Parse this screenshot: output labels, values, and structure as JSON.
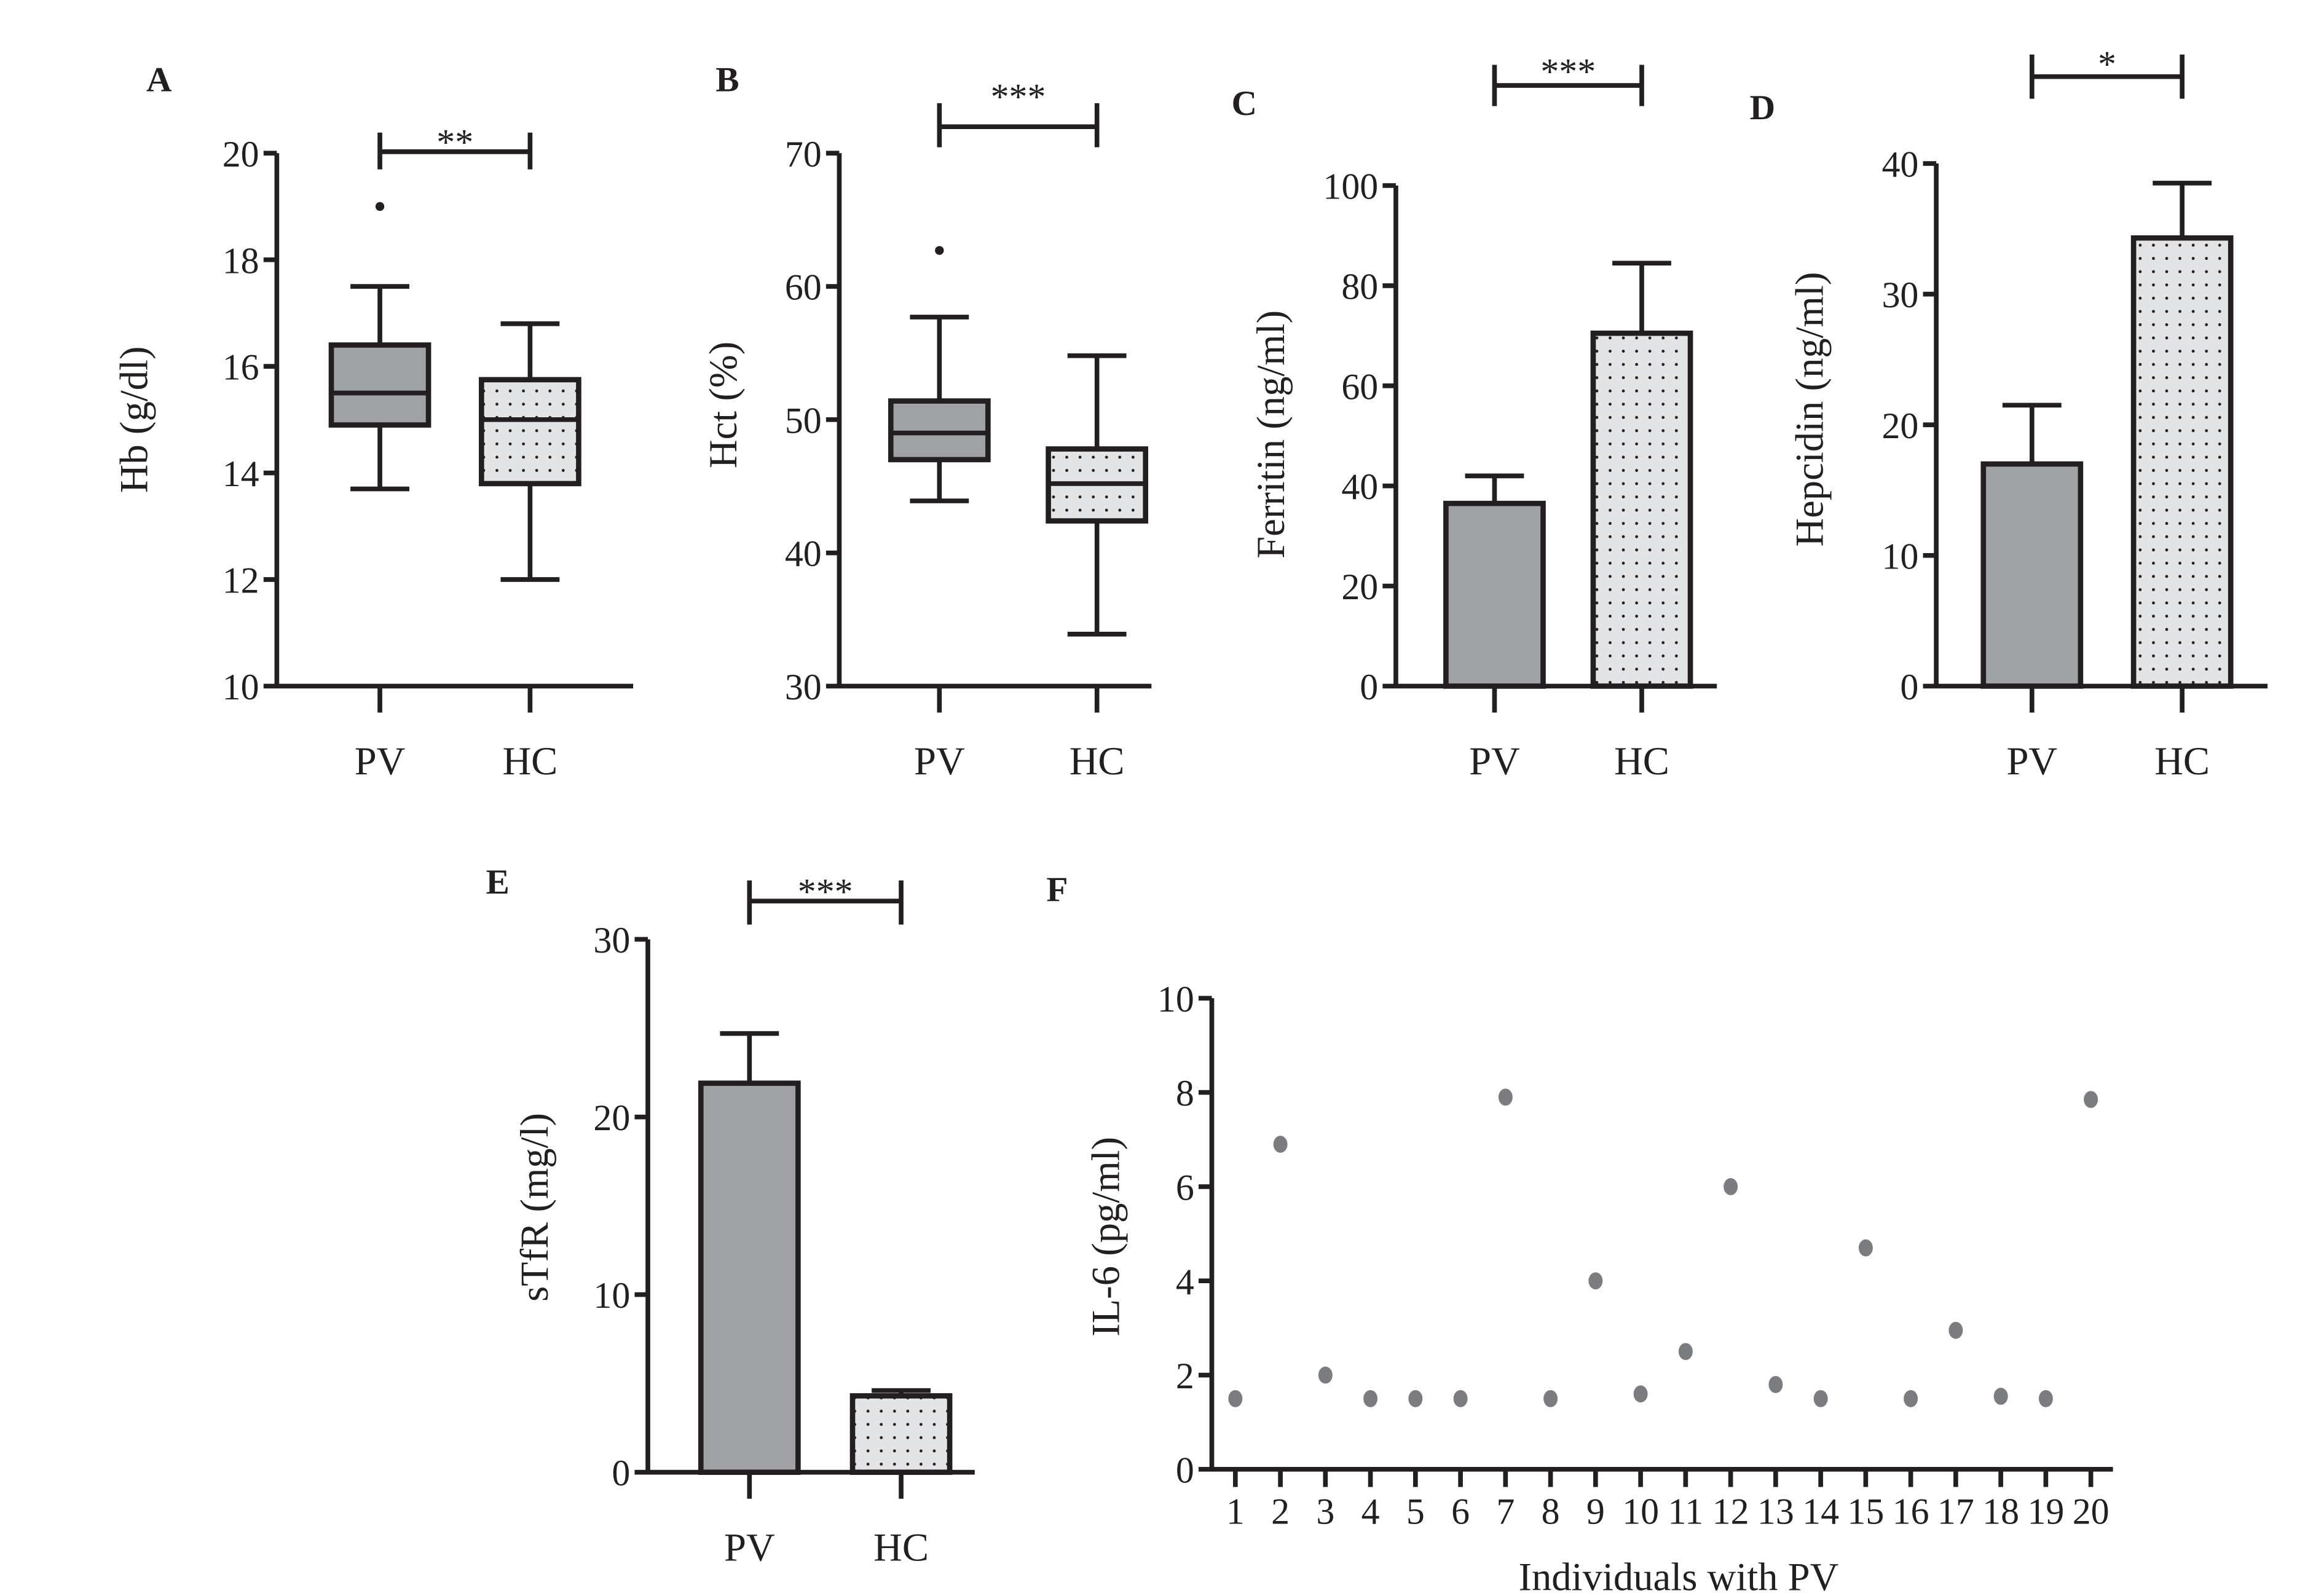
{
  "colors": {
    "pv_fill": "#a0a1a5",
    "hc_fill": "#e3e4e6",
    "dots": "#7b7c80",
    "ink": "#231f20"
  },
  "chart_data": [
    {
      "panel": "A",
      "type": "box",
      "ylabel": "Hb (g/dl)",
      "ylim": [
        10,
        20
      ],
      "yticks": [
        10,
        12,
        14,
        16,
        18,
        20
      ],
      "categories": [
        "PV",
        "HC"
      ],
      "significance": "**",
      "boxes": [
        {
          "name": "PV",
          "min": 13.7,
          "q1": 14.9,
          "median": 15.5,
          "q3": 16.4,
          "max": 17.5,
          "outliers": [
            19.0
          ]
        },
        {
          "name": "HC",
          "min": 12.0,
          "q1": 13.8,
          "median": 15.0,
          "q3": 15.75,
          "max": 16.8,
          "outliers": []
        }
      ]
    },
    {
      "panel": "B",
      "type": "box",
      "ylabel": "Hct (%)",
      "ylim": [
        30,
        70
      ],
      "yticks": [
        30,
        40,
        50,
        60,
        70
      ],
      "categories": [
        "PV",
        "HC"
      ],
      "significance": "***",
      "boxes": [
        {
          "name": "PV",
          "min": 43.9,
          "q1": 47.0,
          "median": 49.0,
          "q3": 51.4,
          "max": 57.7,
          "outliers": [
            62.7
          ]
        },
        {
          "name": "HC",
          "min": 33.9,
          "q1": 42.4,
          "median": 45.2,
          "q3": 47.8,
          "max": 54.8,
          "outliers": []
        }
      ]
    },
    {
      "panel": "C",
      "type": "bar",
      "ylabel": "Ferritin (ng/ml)",
      "ylim": [
        0,
        100
      ],
      "yticks": [
        0,
        20,
        40,
        60,
        80,
        100
      ],
      "categories": [
        "PV",
        "HC"
      ],
      "values": [
        36.5,
        70.5
      ],
      "error_upper": [
        42,
        84.5
      ],
      "significance": "***"
    },
    {
      "panel": "D",
      "type": "bar",
      "ylabel": "Hepcidin (ng/ml)",
      "ylim": [
        0,
        40
      ],
      "yticks": [
        0,
        10,
        20,
        30,
        40
      ],
      "categories": [
        "PV",
        "HC"
      ],
      "values": [
        17,
        34.3
      ],
      "error_upper": [
        21.5,
        38.5
      ],
      "significance": "*"
    },
    {
      "panel": "E",
      "type": "bar",
      "ylabel": "sTfR (mg/l)",
      "ylim": [
        0,
        30
      ],
      "yticks": [
        0,
        10,
        20,
        30
      ],
      "categories": [
        "PV",
        "HC"
      ],
      "values": [
        21.9,
        4.3
      ],
      "error_upper": [
        24.7,
        4.6
      ],
      "significance": "***"
    },
    {
      "panel": "F",
      "type": "scatter",
      "ylabel": "IL-6 (pg/ml)",
      "xlabel": "Individuals with PV",
      "ylim": [
        0,
        10
      ],
      "yticks": [
        0,
        2,
        4,
        6,
        8,
        10
      ],
      "x": [
        1,
        2,
        3,
        4,
        5,
        6,
        7,
        8,
        9,
        10,
        11,
        12,
        13,
        14,
        15,
        16,
        17,
        18,
        19,
        20
      ],
      "y": [
        1.5,
        6.9,
        2.0,
        1.5,
        1.5,
        1.5,
        7.9,
        1.5,
        4.0,
        1.6,
        2.5,
        6.0,
        1.8,
        1.5,
        4.7,
        1.5,
        2.95,
        1.55,
        1.5,
        7.85
      ]
    }
  ]
}
